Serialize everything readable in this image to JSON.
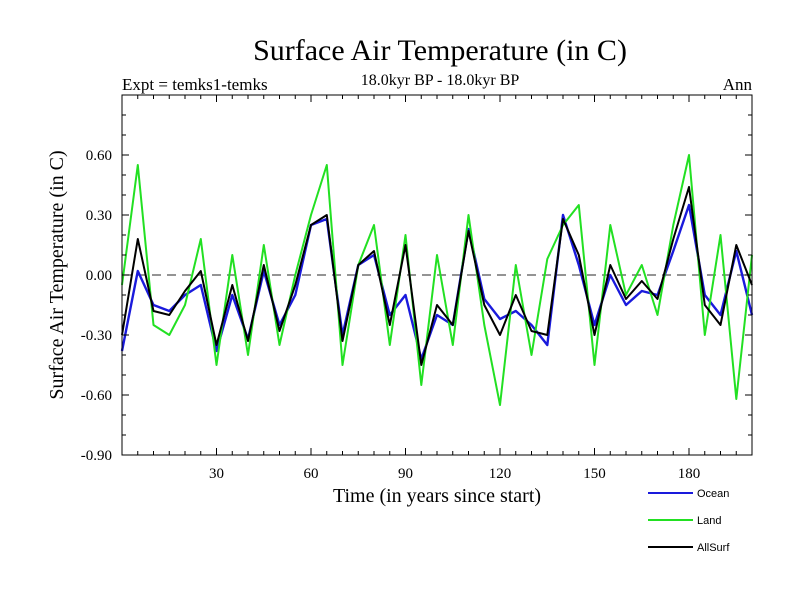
{
  "chart_data": {
    "type": "line",
    "title": "Surface Air Temperature (in C)",
    "subtitle": "18.0kyr BP - 18.0kyr BP",
    "left_note": "Expt = temks1-temks",
    "right_note": "Ann",
    "xlabel": "Time (in years since start)",
    "ylabel": "Surface Air Temperature (in C)",
    "xlim": [
      0,
      200
    ],
    "ylim": [
      -0.9,
      0.9
    ],
    "xticks": [
      30,
      60,
      90,
      120,
      150,
      180
    ],
    "xtick_labels": [
      "30",
      "60",
      "90",
      "120",
      "150",
      "180"
    ],
    "yticks": [
      -0.9,
      -0.6,
      -0.3,
      0.0,
      0.3,
      0.6
    ],
    "ytick_labels": [
      "-0.90",
      "-0.60",
      "-0.30",
      "0.00",
      "0.30",
      "0.60"
    ],
    "zero_line": 0.0,
    "series": [
      {
        "name": "Ocean",
        "color": "#1a1adc",
        "x": [
          0,
          5,
          10,
          15,
          20,
          25,
          30,
          35,
          40,
          45,
          50,
          55,
          60,
          65,
          70,
          75,
          80,
          85,
          90,
          95,
          100,
          105,
          110,
          115,
          120,
          125,
          130,
          135,
          140,
          145,
          150,
          155,
          160,
          165,
          170,
          175,
          180,
          185,
          190,
          195,
          200
        ],
        "values": [
          -0.38,
          0.02,
          -0.15,
          -0.18,
          -0.1,
          -0.05,
          -0.38,
          -0.1,
          -0.32,
          0.02,
          -0.25,
          -0.1,
          0.25,
          0.28,
          -0.3,
          0.05,
          0.1,
          -0.2,
          -0.1,
          -0.42,
          -0.2,
          -0.25,
          0.23,
          -0.12,
          -0.22,
          -0.18,
          -0.25,
          -0.35,
          0.3,
          0.05,
          -0.25,
          0.0,
          -0.15,
          -0.08,
          -0.1,
          0.12,
          0.35,
          -0.1,
          -0.2,
          0.12,
          -0.2
        ]
      },
      {
        "name": "Land",
        "color": "#22e022",
        "x": [
          0,
          5,
          10,
          15,
          20,
          25,
          30,
          35,
          40,
          45,
          50,
          55,
          60,
          65,
          70,
          75,
          80,
          85,
          90,
          95,
          100,
          105,
          110,
          115,
          120,
          125,
          130,
          135,
          140,
          145,
          150,
          155,
          160,
          165,
          170,
          175,
          180,
          185,
          190,
          195,
          200
        ],
        "values": [
          -0.05,
          0.55,
          -0.25,
          -0.3,
          -0.15,
          0.18,
          -0.45,
          0.1,
          -0.4,
          0.15,
          -0.35,
          0.0,
          0.3,
          0.55,
          -0.45,
          0.05,
          0.25,
          -0.35,
          0.2,
          -0.55,
          0.1,
          -0.35,
          0.3,
          -0.25,
          -0.65,
          0.05,
          -0.4,
          0.08,
          0.25,
          0.35,
          -0.45,
          0.25,
          -0.1,
          0.05,
          -0.2,
          0.25,
          0.6,
          -0.3,
          0.2,
          -0.62,
          0.1
        ]
      },
      {
        "name": "AllSurf",
        "color": "#000000",
        "x": [
          0,
          5,
          10,
          15,
          20,
          25,
          30,
          35,
          40,
          45,
          50,
          55,
          60,
          65,
          70,
          75,
          80,
          85,
          90,
          95,
          100,
          105,
          110,
          115,
          120,
          125,
          130,
          135,
          140,
          145,
          150,
          155,
          160,
          165,
          170,
          175,
          180,
          185,
          190,
          195,
          200
        ],
        "values": [
          -0.3,
          0.18,
          -0.18,
          -0.2,
          -0.08,
          0.02,
          -0.35,
          -0.05,
          -0.33,
          0.05,
          -0.28,
          -0.05,
          0.25,
          0.3,
          -0.33,
          0.05,
          0.12,
          -0.25,
          0.15,
          -0.45,
          -0.15,
          -0.25,
          0.22,
          -0.15,
          -0.3,
          -0.1,
          -0.28,
          -0.3,
          0.28,
          0.1,
          -0.3,
          0.05,
          -0.12,
          -0.03,
          -0.12,
          0.18,
          0.44,
          -0.15,
          -0.25,
          0.15,
          -0.05
        ]
      }
    ],
    "legend": {
      "placement": "bottom-right",
      "labels": [
        "Ocean",
        "Land",
        "AllSurf"
      ]
    }
  }
}
